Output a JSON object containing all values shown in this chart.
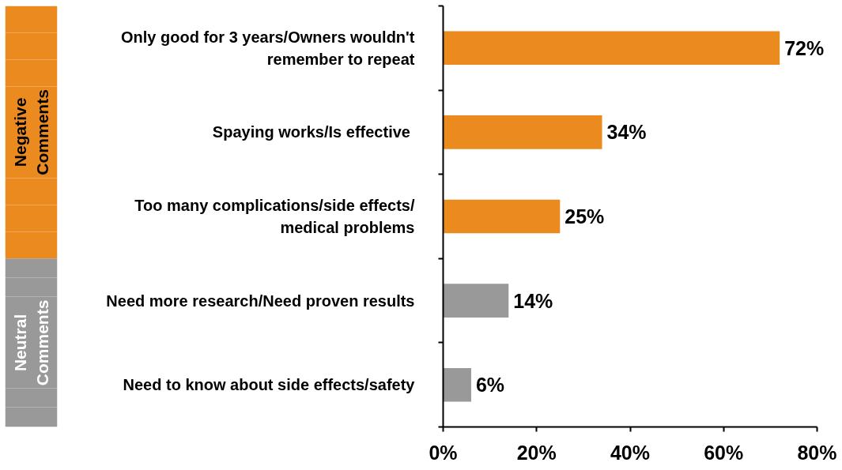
{
  "chart_data": {
    "type": "bar",
    "orientation": "horizontal",
    "stacked": true,
    "categories": [
      "Only good for 3 years/Owners wouldn't\nremember to repeat",
      "Spaying works/Is effective ",
      "Too many complications/side effects/\nmedical problems",
      "Need more research/Need proven results",
      "Need to know about side effects/safety"
    ],
    "series": [
      {
        "name": "Negative\nComments",
        "color": "#eb8a1f",
        "values": [
          72,
          34,
          25,
          null,
          null
        ],
        "value_labels": [
          "72%",
          "34%",
          "25%",
          null,
          null
        ]
      },
      {
        "name": "Neutral\nComments",
        "color": "#999999",
        "values": [
          null,
          null,
          null,
          14,
          6
        ],
        "value_labels": [
          null,
          null,
          null,
          "14%",
          "6%"
        ]
      }
    ],
    "xlim": [
      0,
      80
    ],
    "xticks": [
      {
        "value": 0,
        "label": "0%"
      },
      {
        "value": 20,
        "label": "20%"
      },
      {
        "value": 40,
        "label": "40%"
      },
      {
        "value": 60,
        "label": "60%"
      },
      {
        "value": 80,
        "label": "80%"
      }
    ],
    "grid": false,
    "legend": "left"
  }
}
